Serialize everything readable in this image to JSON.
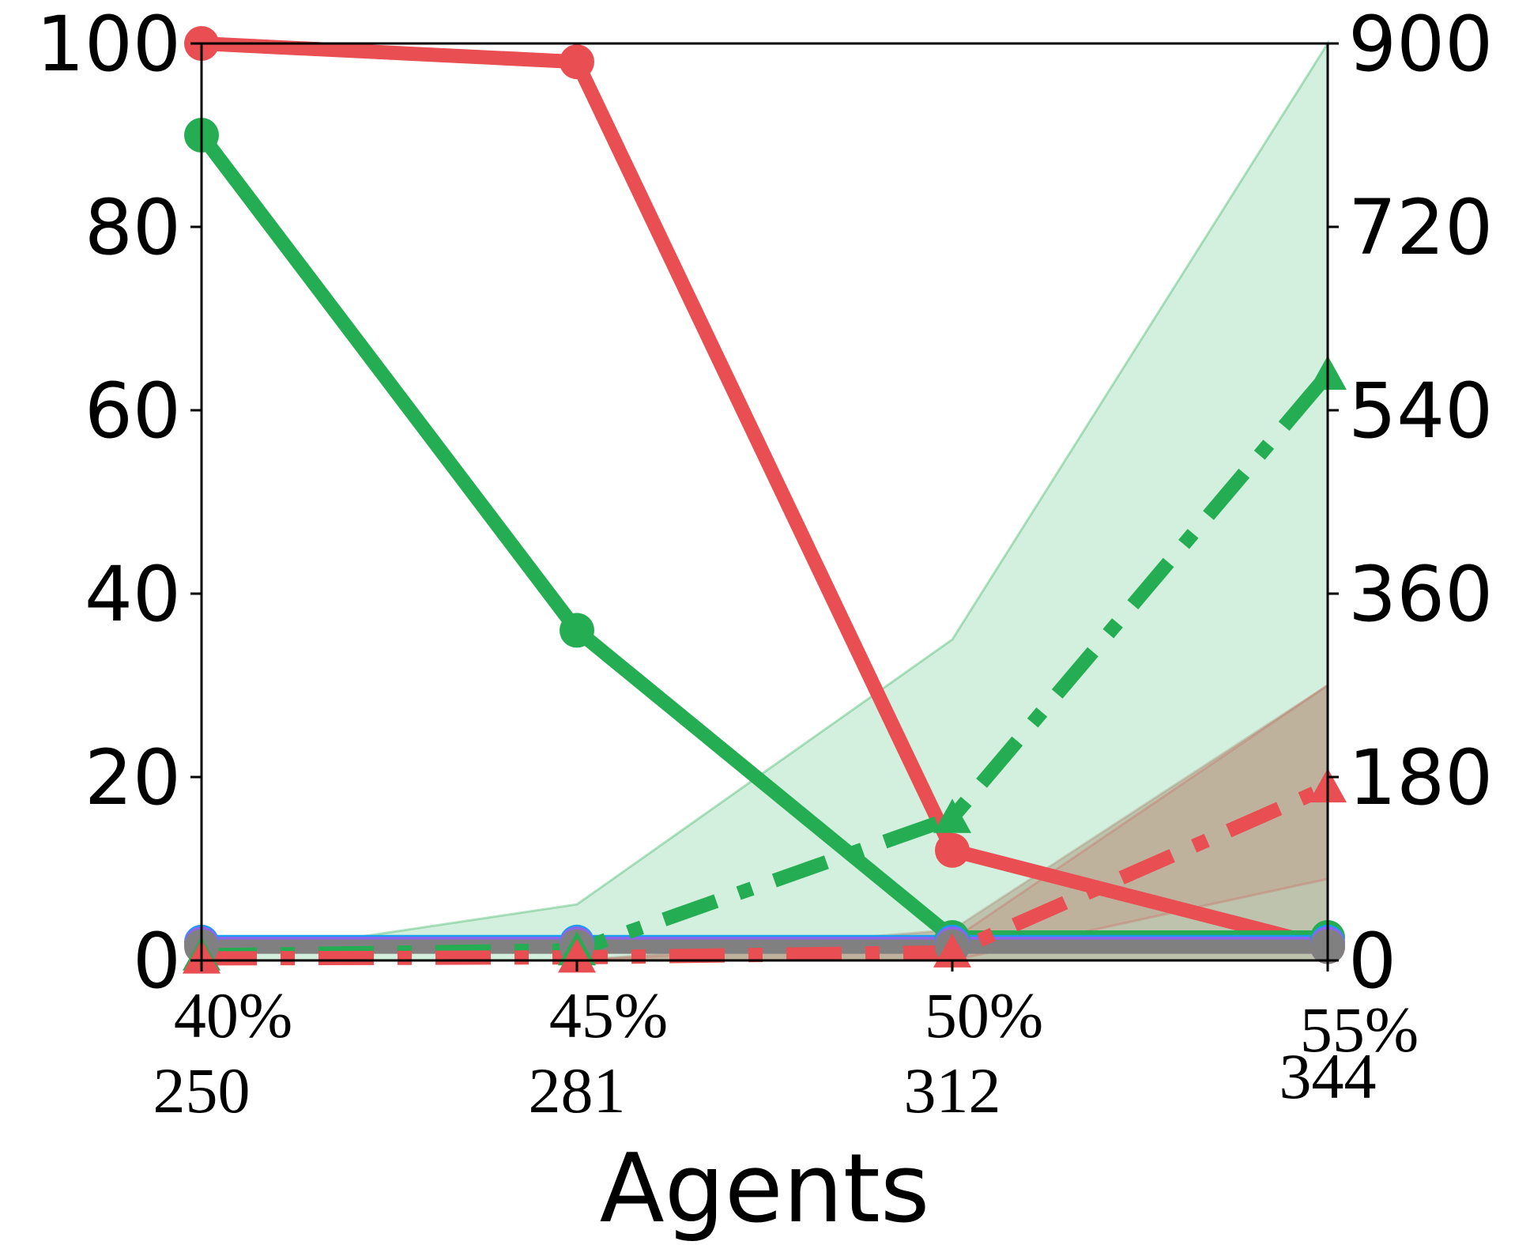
{
  "chart_data": {
    "type": "line",
    "xlabel": "Agents",
    "x_tick_labels": [
      {
        "pct": "40%",
        "count": "250"
      },
      {
        "pct": "45%",
        "count": "281"
      },
      {
        "pct": "50%",
        "count": "312"
      },
      {
        "pct": "55%",
        "count": "344"
      }
    ],
    "left_axis": {
      "ylim": [
        0,
        100
      ],
      "ticks": [
        "0",
        "20",
        "40",
        "60",
        "80",
        "100"
      ]
    },
    "right_axis": {
      "ylim": [
        0,
        900
      ],
      "ticks": [
        "0",
        "180",
        "360",
        "540",
        "720",
        "900"
      ]
    },
    "grid": false,
    "legend": "none",
    "series": [
      {
        "axis": "left",
        "style": "solid",
        "marker": "circle",
        "color": "#e84e52",
        "values": [
          100,
          98,
          12,
          1.5
        ]
      },
      {
        "axis": "left",
        "style": "solid",
        "marker": "circle",
        "color": "#24ad53",
        "values": [
          90,
          36,
          2.5,
          2.5
        ]
      },
      {
        "axis": "left",
        "style": "solid",
        "marker": "circle",
        "color": "#1a9cf2",
        "values": [
          2,
          2,
          2,
          2
        ]
      },
      {
        "axis": "left",
        "style": "solid",
        "marker": "circle",
        "color": "#8f65e8",
        "values": [
          1.8,
          1.8,
          1.8,
          1.8
        ]
      },
      {
        "axis": "left",
        "style": "solid",
        "marker": "circle",
        "color": "#808080",
        "values": [
          1.5,
          1.5,
          1.5,
          1.5
        ]
      },
      {
        "axis": "right",
        "style": "dashdot",
        "marker": "triangle",
        "color": "#24ad53",
        "values": [
          5,
          10,
          140,
          575
        ],
        "band": [
          [
            0,
            0
          ],
          [
            0,
            55
          ],
          [
            0,
            315
          ],
          [
            0,
            900
          ]
        ]
      },
      {
        "axis": "right",
        "style": "dashdot",
        "marker": "triangle",
        "color": "#e84e52",
        "values": [
          2,
          3,
          8,
          170
        ],
        "band": [
          [
            0,
            0
          ],
          [
            0,
            0
          ],
          [
            0,
            20
          ],
          [
            80,
            270
          ]
        ]
      },
      {
        "axis": "right",
        "style": "none",
        "marker": "none",
        "color": "#a58d73",
        "values": [
          0,
          0,
          30,
          270
        ],
        "band": [
          [
            0,
            0
          ],
          [
            0,
            0
          ],
          [
            0,
            30
          ],
          [
            0,
            270
          ]
        ]
      }
    ]
  }
}
